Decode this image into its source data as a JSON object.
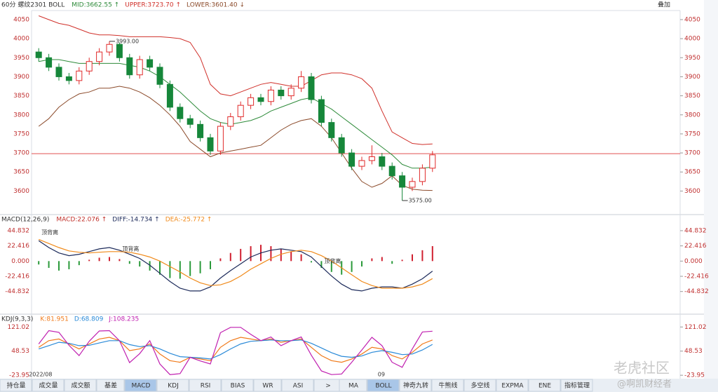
{
  "chart_data": [
    {
      "type": "candlestick",
      "title": "60分 螺纹2301 BOLL",
      "legend": [
        "MID:3662.55 ↑",
        "UPPER:3723.70 ↑",
        "LOWER:3601.40 ↓"
      ],
      "open": [
        3965,
        3950,
        3925,
        3900,
        3890,
        3915,
        3940,
        3965,
        3985,
        3950,
        3905,
        3945,
        3925,
        3880,
        3820,
        3790,
        3775,
        3740,
        3705,
        3770,
        3795,
        3825,
        3845,
        3835,
        3865,
        3850,
        3870,
        3900,
        3840,
        3780,
        3740,
        3700,
        3665,
        3680,
        3690,
        3665,
        3640,
        3610,
        3625,
        3660
      ],
      "high": [
        3975,
        3960,
        3935,
        3910,
        3925,
        3950,
        3975,
        3993,
        3990,
        3960,
        3955,
        3955,
        3935,
        3890,
        3830,
        3800,
        3785,
        3750,
        3780,
        3805,
        3835,
        3855,
        3855,
        3875,
        3875,
        3880,
        3915,
        3910,
        3850,
        3790,
        3750,
        3710,
        3690,
        3720,
        3700,
        3675,
        3650,
        3635,
        3670,
        3705
      ],
      "low": [
        3940,
        3915,
        3890,
        3880,
        3880,
        3905,
        3930,
        3955,
        3940,
        3895,
        3895,
        3915,
        3870,
        3810,
        3780,
        3765,
        3730,
        3695,
        3695,
        3760,
        3785,
        3815,
        3825,
        3825,
        3840,
        3840,
        3860,
        3830,
        3770,
        3730,
        3690,
        3655,
        3655,
        3670,
        3655,
        3630,
        3575,
        3600,
        3615,
        3650
      ],
      "close": [
        3950,
        3925,
        3900,
        3890,
        3915,
        3940,
        3965,
        3985,
        3950,
        3905,
        3945,
        3925,
        3880,
        3820,
        3790,
        3775,
        3740,
        3705,
        3770,
        3795,
        3825,
        3845,
        3835,
        3865,
        3850,
        3870,
        3900,
        3840,
        3780,
        3740,
        3700,
        3665,
        3680,
        3690,
        3665,
        3640,
        3610,
        3625,
        3660,
        3695
      ],
      "up_color": "#e02a2a",
      "down_color": "#16873a",
      "bands": [
        {
          "name": "MID",
          "color": "#2e8b3a",
          "values": [
            3940,
            3945,
            3945,
            3940,
            3935,
            3935,
            3935,
            3935,
            3935,
            3930,
            3925,
            3915,
            3900,
            3880,
            3860,
            3835,
            3810,
            3790,
            3780,
            3775,
            3780,
            3785,
            3795,
            3810,
            3820,
            3830,
            3840,
            3845,
            3830,
            3815,
            3795,
            3775,
            3755,
            3735,
            3715,
            3695,
            3670,
            3660,
            3660,
            3662.55
          ]
        },
        {
          "name": "UPPER",
          "color": "#d0302a",
          "values": [
            4060,
            4050,
            4040,
            4035,
            4025,
            4015,
            4010,
            4010,
            4008,
            4005,
            4005,
            4005,
            4005,
            4003,
            4000,
            3990,
            3950,
            3880,
            3855,
            3850,
            3860,
            3870,
            3880,
            3885,
            3880,
            3875,
            3875,
            3890,
            3905,
            3910,
            3910,
            3905,
            3895,
            3870,
            3810,
            3755,
            3740,
            3725,
            3722,
            3723.7
          ]
        },
        {
          "name": "LOWER",
          "color": "#8b4a2a",
          "values": [
            3770,
            3790,
            3820,
            3840,
            3855,
            3860,
            3870,
            3870,
            3875,
            3870,
            3860,
            3845,
            3825,
            3800,
            3770,
            3730,
            3710,
            3690,
            3700,
            3705,
            3710,
            3715,
            3720,
            3740,
            3760,
            3775,
            3785,
            3790,
            3770,
            3740,
            3700,
            3660,
            3625,
            3610,
            3620,
            3640,
            3615,
            3605,
            3602,
            3601.4
          ]
        }
      ],
      "price_line": {
        "value": 3698,
        "color": "#e05050"
      },
      "annotations": [
        {
          "label": "3993.00",
          "at": 7,
          "value": 3993
        },
        {
          "label": "3575.00",
          "at": 36,
          "value": 3575
        }
      ],
      "ylim": [
        3540,
        4072
      ],
      "yticks": [
        3600,
        3650,
        3700,
        3750,
        3800,
        3850,
        3900,
        3950,
        4000,
        4050
      ]
    },
    {
      "type": "macd",
      "title": "MACD(12,26,9)",
      "series": [
        {
          "name": "MACD:22.076 ↑",
          "color": "#c0302a",
          "up_color": "#d02030",
          "down_color": "#2a9a3a",
          "kind": "bar",
          "values": [
            -5,
            -10,
            -14,
            -12,
            -6,
            2,
            5,
            6,
            3,
            -4,
            -8,
            -14,
            -20,
            -25,
            -26,
            -22,
            -18,
            -12,
            4,
            12,
            18,
            22,
            24,
            22,
            18,
            14,
            10,
            -2,
            -10,
            -16,
            -20,
            -16,
            -8,
            4,
            6,
            -4,
            2,
            10,
            16,
            22.076
          ]
        },
        {
          "name": "DIFF:-14.734 ↑",
          "color": "#1c2a5a",
          "values": [
            30,
            20,
            12,
            8,
            10,
            14,
            18,
            20,
            16,
            10,
            4,
            -6,
            -18,
            -30,
            -40,
            -44,
            -44,
            -38,
            -25,
            -14,
            -4,
            6,
            12,
            16,
            18,
            16,
            14,
            6,
            -8,
            -22,
            -34,
            -42,
            -44,
            -40,
            -38,
            -38,
            -40,
            -34,
            -26,
            -14.734
          ]
        },
        {
          "name": "DEA:-25.772 ↑",
          "color": "#f08a1a",
          "values": [
            32,
            26,
            20,
            15,
            13,
            12,
            13,
            14,
            14,
            13,
            10,
            6,
            0,
            -8,
            -16,
            -25,
            -32,
            -36,
            -35,
            -30,
            -22,
            -12,
            -4,
            4,
            10,
            14,
            16,
            14,
            8,
            0,
            -10,
            -20,
            -30,
            -36,
            -40,
            -40,
            -40,
            -38,
            -34,
            -25.772
          ]
        }
      ],
      "annotations": [
        {
          "label": "顶背离",
          "at": 0,
          "value": 42
        },
        {
          "label": "顶背离",
          "at": 8,
          "value": 18
        },
        {
          "label": "顶背离",
          "at": 28,
          "value": 0
        }
      ],
      "ylim": [
        -72,
        52
      ],
      "yticks": [
        44.832,
        22.416,
        {
          "value": 0,
          "label": "0.000"
        },
        -22.416,
        -44.832
      ]
    },
    {
      "type": "line",
      "title": "KDJ(9,3,3)",
      "categories": [
        "2022/08",
        null,
        null,
        null,
        null,
        null,
        null,
        null,
        null,
        null,
        null,
        null,
        null,
        null,
        null,
        null,
        null,
        null,
        null,
        null,
        null,
        null,
        null,
        null,
        null,
        null,
        null,
        null,
        null,
        null,
        null,
        null,
        null,
        null,
        "09",
        null,
        null,
        null,
        null,
        null
      ],
      "series": [
        {
          "name": "K:81.951",
          "color": "#f07a1a",
          "values": [
            60,
            80,
            85,
            70,
            55,
            70,
            85,
            90,
            80,
            50,
            55,
            70,
            40,
            20,
            15,
            30,
            25,
            20,
            60,
            80,
            90,
            85,
            80,
            85,
            75,
            80,
            85,
            60,
            35,
            20,
            15,
            25,
            40,
            60,
            55,
            35,
            25,
            45,
            70,
            81.951
          ]
        },
        {
          "name": "D:68.809",
          "color": "#2a8ad8",
          "values": [
            55,
            65,
            75,
            72,
            65,
            66,
            73,
            80,
            80,
            68,
            62,
            65,
            55,
            42,
            32,
            30,
            28,
            25,
            38,
            55,
            70,
            78,
            80,
            82,
            80,
            80,
            82,
            72,
            58,
            44,
            33,
            30,
            34,
            45,
            50,
            45,
            38,
            40,
            52,
            68.809
          ]
        },
        {
          "name": "J:108.235",
          "color": "#c020b0",
          "values": [
            70,
            110,
            105,
            66,
            35,
            78,
            109,
            110,
            80,
            14,
            41,
            80,
            10,
            -22,
            -19,
            30,
            19,
            10,
            104,
            120,
            120,
            99,
            80,
            91,
            65,
            80,
            91,
            36,
            -11,
            -22,
            -20,
            15,
            52,
            90,
            65,
            15,
            0,
            55,
            106,
            108.235
          ]
        }
      ],
      "ylim": [
        -30,
        130
      ],
      "yticks": [
        121.02,
        48.53,
        -23.95
      ]
    }
  ],
  "top_right": "叠加",
  "toolbar": {
    "left": [
      {
        "label": "持仓量"
      },
      {
        "label": "成交量"
      },
      {
        "label": "成交额"
      },
      {
        "label": "基差"
      },
      {
        "label": "MACD",
        "active": true
      },
      {
        "label": "KDJ"
      },
      {
        "label": "RSI"
      },
      {
        "label": "BIAS"
      },
      {
        "label": "WR"
      },
      {
        "label": "ASI"
      },
      {
        "label": ">"
      }
    ],
    "right": [
      {
        "label": "MA"
      },
      {
        "label": "BOLL",
        "active": true
      },
      {
        "label": "神奇九转"
      },
      {
        "label": "牛熊线"
      },
      {
        "label": "多空线"
      },
      {
        "label": "EXPMA"
      },
      {
        "label": "ENE"
      },
      {
        "label": "指标管理"
      }
    ]
  },
  "watermark": [
    "老虎社区",
    "@啊凯财经者"
  ]
}
